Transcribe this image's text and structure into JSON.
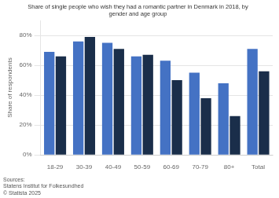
{
  "chart_data": {
    "type": "bar",
    "title": "Share of single people who wish they had a romantic partner in Denmark in 2018, by\ngender and age group",
    "annotations": [
      "Sources:\nStatens Institut for Folkesundhed\n© Statista 2025"
    ],
    "y_label": "Share of respondents",
    "categories": [
      "18-29",
      "30-39",
      "40-49",
      "50-59",
      "60-69",
      "70-79",
      "80+",
      "Total"
    ],
    "series": [
      {
        "color": "#4472C4",
        "values": [
          0.69,
          0.76,
          0.75,
          0.66,
          0.63,
          0.55,
          0.48,
          0.71
        ]
      },
      {
        "color": "#1a2e4a",
        "values": [
          0.66,
          0.79,
          0.71,
          0.67,
          0.5,
          0.38,
          0.26,
          0.56
        ]
      }
    ],
    "ylim": [
      0,
      0.9
    ],
    "yticks": [
      {
        "value": 0,
        "label": "0%"
      },
      {
        "value": 0.2,
        "label": "20%"
      },
      {
        "value": 0.4,
        "label": "40%"
      },
      {
        "value": 0.6,
        "label": "60%"
      },
      {
        "value": 0.8,
        "label": "80%"
      }
    ],
    "grid": true
  }
}
